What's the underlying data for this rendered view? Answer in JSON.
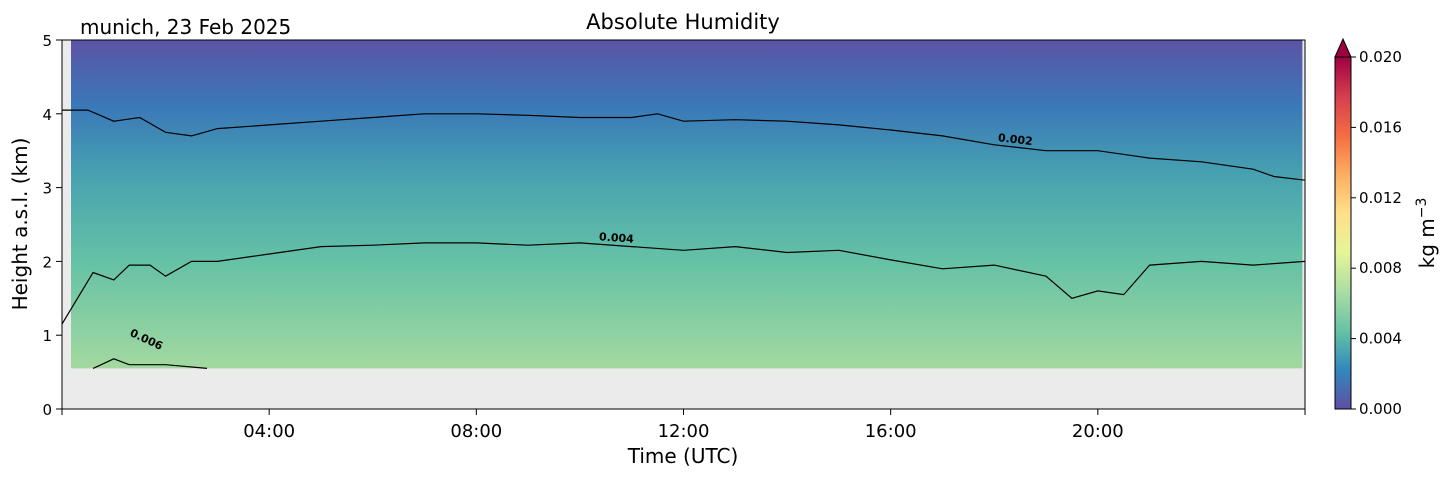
{
  "chart_data": {
    "type": "heatmap",
    "title": "Absolute Humidity",
    "subtitle": "munich, 23 Feb 2025",
    "xlabel": "Time (UTC)",
    "ylabel": "Height a.s.l. (km)",
    "x_range_hours": [
      0,
      24
    ],
    "ylim": [
      0,
      5
    ],
    "x_ticks": [
      {
        "hour": 4,
        "label": "04:00"
      },
      {
        "hour": 8,
        "label": "08:00"
      },
      {
        "hour": 12,
        "label": "12:00"
      },
      {
        "hour": 16,
        "label": "16:00"
      },
      {
        "hour": 20,
        "label": "20:00"
      }
    ],
    "y_ticks": [
      {
        "value": 0,
        "label": "0"
      },
      {
        "value": 1,
        "label": "1"
      },
      {
        "value": 2,
        "label": "2"
      },
      {
        "value": 3,
        "label": "3"
      },
      {
        "value": 4,
        "label": "4"
      },
      {
        "value": 5,
        "label": "5"
      }
    ],
    "data_floor_km": 0.55,
    "colorbar": {
      "label": "kg m",
      "label_superscript": "−3",
      "range": [
        0.0,
        0.02
      ],
      "extend": "max",
      "ticks": [
        {
          "value": 0.0,
          "label": "0.000"
        },
        {
          "value": 0.004,
          "label": "0.004"
        },
        {
          "value": 0.008,
          "label": "0.008"
        },
        {
          "value": 0.012,
          "label": "0.012"
        },
        {
          "value": 0.016,
          "label": "0.016"
        },
        {
          "value": 0.02,
          "label": "0.020"
        }
      ],
      "colormap": "Spectral_r",
      "colors": [
        "#5e4fa2",
        "#3288bd",
        "#66c2a5",
        "#abdda4",
        "#e6f598",
        "#fee08b",
        "#fdae61",
        "#f46d43",
        "#d53e4f",
        "#9e0142"
      ],
      "no_data_color": "#ebebeb"
    },
    "contours": [
      {
        "level": "0.002",
        "label_at_hour": 18.4,
        "points": [
          [
            0,
            4.05
          ],
          [
            0.5,
            4.05
          ],
          [
            1,
            3.9
          ],
          [
            1.5,
            3.95
          ],
          [
            2,
            3.75
          ],
          [
            2.5,
            3.7
          ],
          [
            3,
            3.8
          ],
          [
            4,
            3.85
          ],
          [
            5,
            3.9
          ],
          [
            6,
            3.95
          ],
          [
            7,
            4.0
          ],
          [
            8,
            4.0
          ],
          [
            9,
            3.98
          ],
          [
            10,
            3.95
          ],
          [
            11,
            3.95
          ],
          [
            11.5,
            4.0
          ],
          [
            12,
            3.9
          ],
          [
            13,
            3.92
          ],
          [
            14,
            3.9
          ],
          [
            15,
            3.85
          ],
          [
            16,
            3.78
          ],
          [
            17,
            3.7
          ],
          [
            18,
            3.58
          ],
          [
            19,
            3.5
          ],
          [
            20,
            3.5
          ],
          [
            21,
            3.4
          ],
          [
            22,
            3.35
          ],
          [
            23,
            3.25
          ],
          [
            23.4,
            3.15
          ],
          [
            24,
            3.1
          ]
        ]
      },
      {
        "level": "0.004",
        "label_at_hour": 10.7,
        "points": [
          [
            0,
            1.15
          ],
          [
            0.3,
            1.5
          ],
          [
            0.6,
            1.85
          ],
          [
            1,
            1.75
          ],
          [
            1.3,
            1.95
          ],
          [
            1.7,
            1.95
          ],
          [
            2,
            1.8
          ],
          [
            2.5,
            2.0
          ],
          [
            3,
            2.0
          ],
          [
            4,
            2.1
          ],
          [
            5,
            2.2
          ],
          [
            6,
            2.22
          ],
          [
            7,
            2.25
          ],
          [
            8,
            2.25
          ],
          [
            9,
            2.22
          ],
          [
            10,
            2.25
          ],
          [
            11,
            2.2
          ],
          [
            12,
            2.15
          ],
          [
            13,
            2.2
          ],
          [
            14,
            2.12
          ],
          [
            15,
            2.15
          ],
          [
            16,
            2.02
          ],
          [
            17,
            1.9
          ],
          [
            18,
            1.95
          ],
          [
            19,
            1.8
          ],
          [
            19.5,
            1.5
          ],
          [
            20,
            1.6
          ],
          [
            20.5,
            1.55
          ],
          [
            21,
            1.95
          ],
          [
            22,
            2.0
          ],
          [
            23,
            1.95
          ],
          [
            24,
            2.0
          ]
        ]
      },
      {
        "level": "0.006",
        "label_at_hour": 1.6,
        "points": [
          [
            0.6,
            0.55
          ],
          [
            1,
            0.68
          ],
          [
            1.3,
            0.6
          ],
          [
            2,
            0.6
          ],
          [
            2.8,
            0.55
          ]
        ]
      }
    ]
  }
}
